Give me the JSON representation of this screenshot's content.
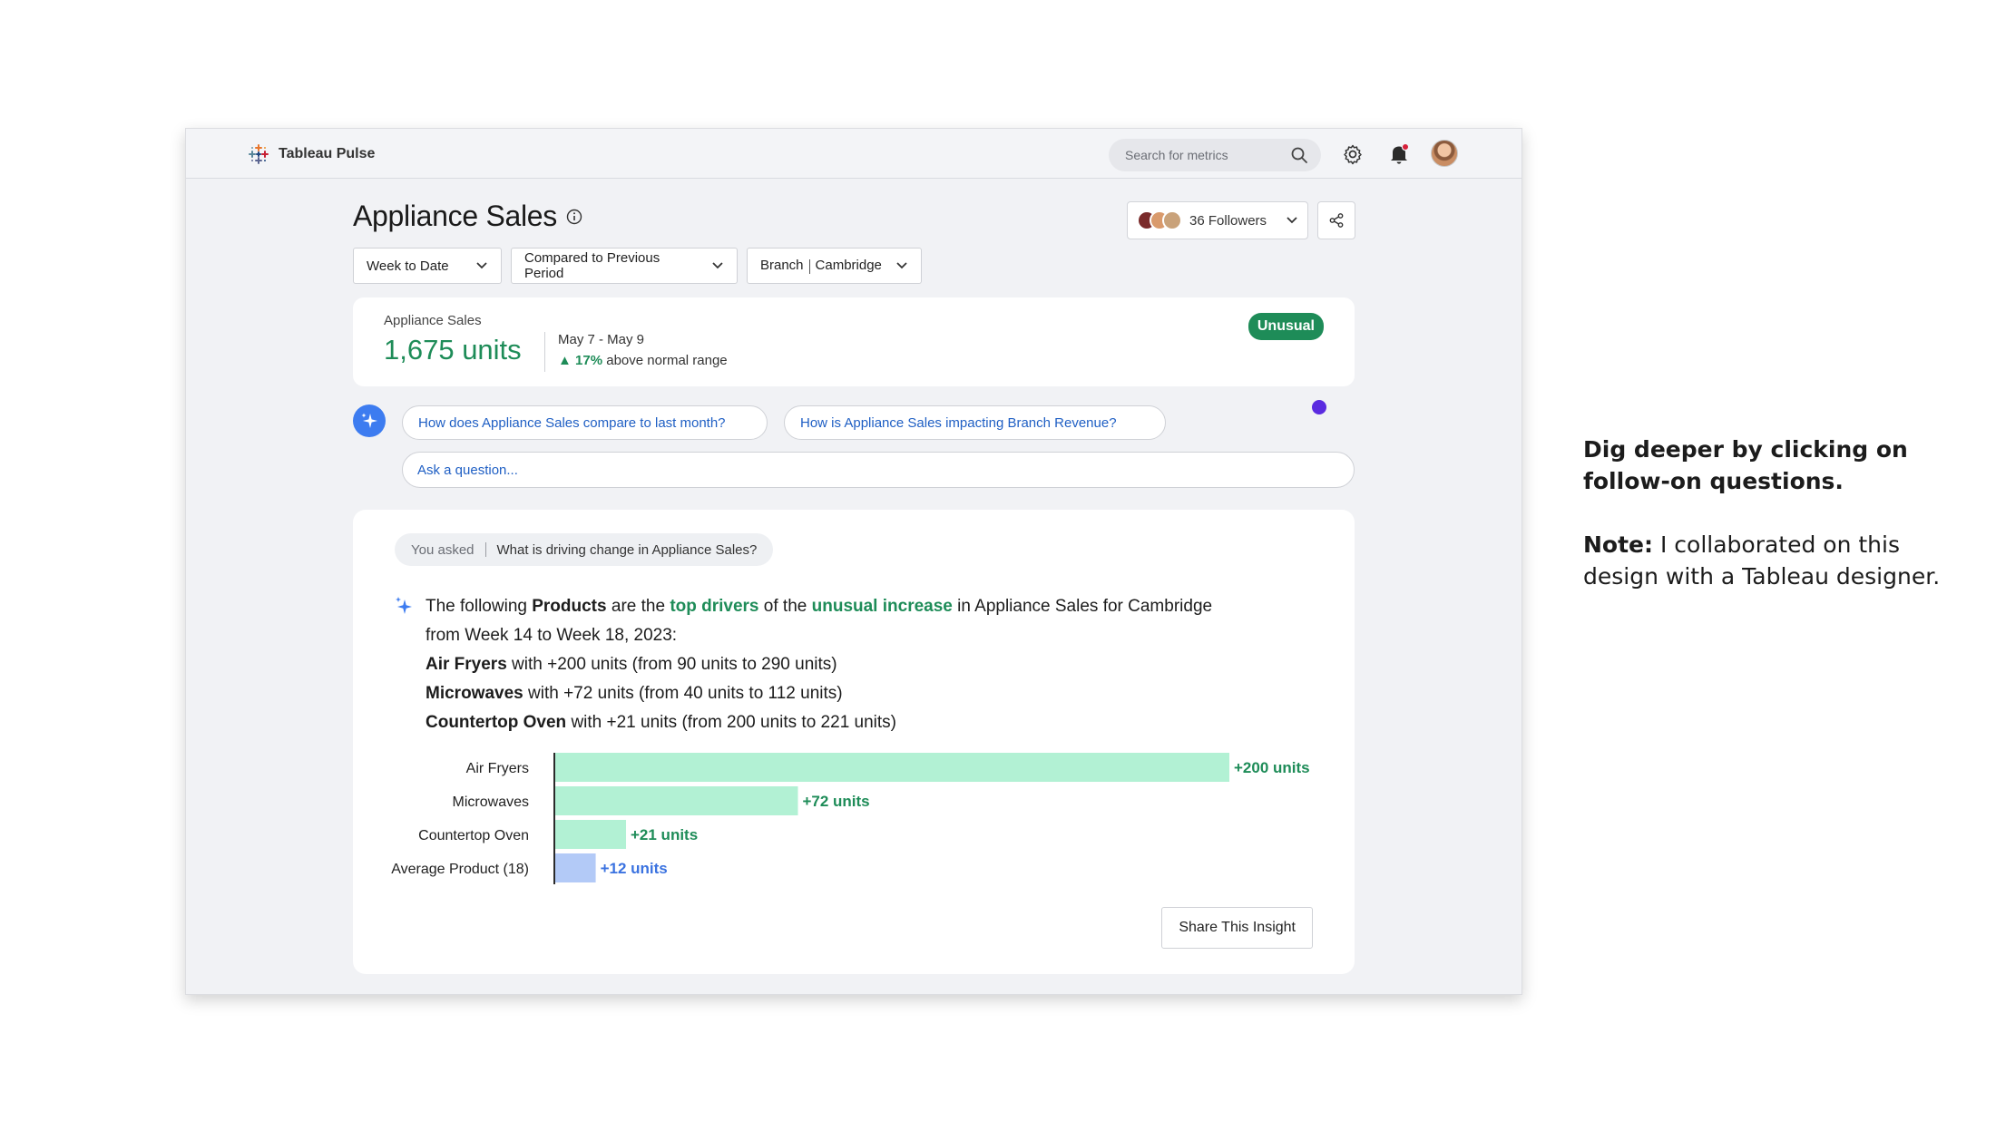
{
  "app": {
    "name": "Tableau Pulse"
  },
  "search": {
    "placeholder": "Search for metrics"
  },
  "header": {
    "title": "Appliance Sales",
    "followers_label": "36 Followers"
  },
  "filters": [
    {
      "label": "Week to Date"
    },
    {
      "label": "Compared to Previous Period"
    },
    {
      "label_a": "Branch",
      "label_b": "Cambridge"
    }
  ],
  "metric": {
    "label": "Appliance Sales",
    "value": "1,675 units",
    "range": "May 7 - May 9",
    "change_arrow": "▲",
    "change_pct": "17%",
    "change_text": "above normal range",
    "badge": "Unusual"
  },
  "questions": [
    {
      "label": "How does Appliance Sales compare to last month?"
    },
    {
      "label": "How is Appliance Sales impacting Branch Revenue?"
    }
  ],
  "ask": {
    "placeholder": "Ask a question..."
  },
  "insight": {
    "you_asked_label": "You asked",
    "question": "What is driving change in Appliance Sales?",
    "sentence": {
      "p1": "The following ",
      "b1": "Products",
      "p2": " are the ",
      "g1": "top drivers",
      "p3": " of the ",
      "g2": "unusual increase",
      "p4": " in Appliance Sales for Cambridge",
      "line2": "from Week 14 to Week 18, 2023:"
    },
    "drivers": [
      {
        "name": "Air Fryers",
        "detail": " with +200 units (from 90 units to 290 units)"
      },
      {
        "name": "Microwaves",
        "detail": " with +72 units (from 40 units to 112 units)"
      },
      {
        "name": "Countertop Oven",
        "detail": " with +21 units (from 200 units to 221 units)"
      }
    ],
    "share_label": "Share This Insight"
  },
  "chart_data": {
    "type": "bar",
    "orientation": "horizontal",
    "categories": [
      "Air Fryers",
      "Microwaves",
      "Countertop Oven",
      "Average Product (18)"
    ],
    "values": [
      200,
      72,
      21,
      12
    ],
    "labels": [
      "+200 units",
      "+72 units",
      "+21 units",
      "+12 units"
    ],
    "colors": [
      "#b2f1d4",
      "#b2f1d4",
      "#b2f1d4",
      "#b3caf7"
    ],
    "label_colors": [
      "#1e8c58",
      "#1e8c58",
      "#1e8c58",
      "#3a72e0"
    ],
    "xlim": [
      0,
      200
    ],
    "grid": false
  },
  "annotation": {
    "heading": "Dig deeper by clicking on follow-on questions.",
    "note_label": "Note:",
    "note_text": " I collaborated on this design with a Tableau designer."
  },
  "colors": {
    "accent_green": "#1e8c58",
    "link_blue": "#1f5fc4",
    "callout_purple": "#5b2be0",
    "sparkle_blue": "#3d7cf0"
  }
}
